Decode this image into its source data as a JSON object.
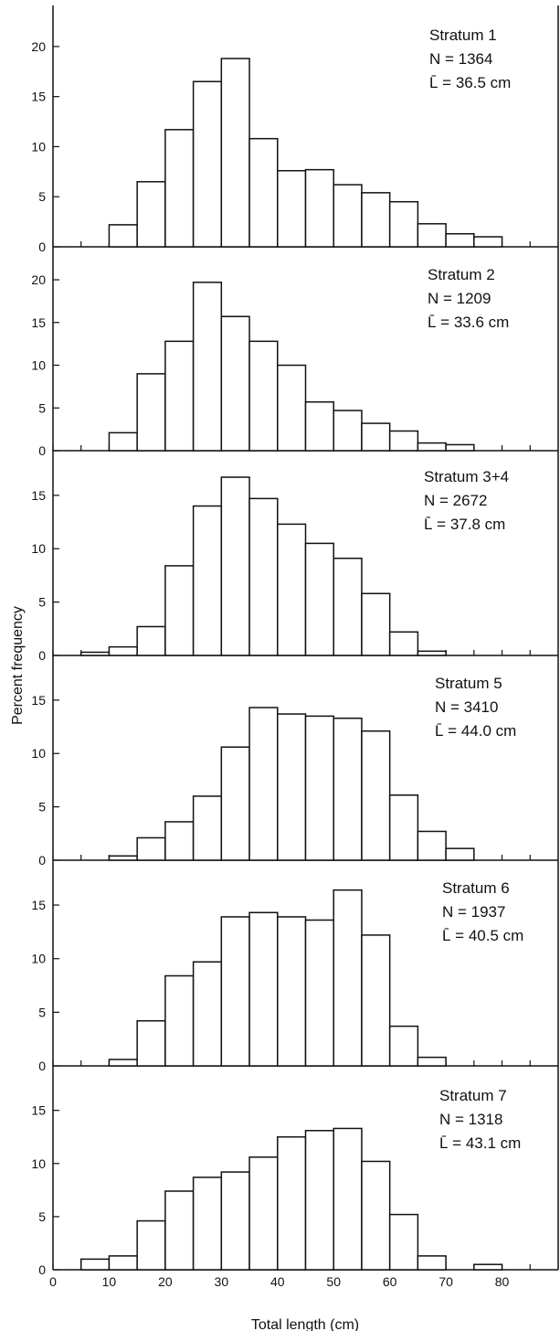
{
  "chart_data": [
    {
      "type": "bar",
      "panel": "Stratum 1",
      "info": [
        "Stratum 1",
        "N = 1364",
        "L̄ = 36.5 cm"
      ],
      "bin_edges": [
        10,
        15,
        20,
        25,
        30,
        35,
        40,
        45,
        50,
        55,
        60,
        65,
        70,
        75,
        80
      ],
      "values": [
        2.2,
        6.5,
        11.7,
        16.5,
        18.8,
        10.8,
        7.6,
        7.7,
        6.2,
        5.4,
        4.5,
        2.3,
        1.3,
        1.0
      ],
      "yticks": [
        0,
        5,
        10,
        15,
        20
      ],
      "ylim": [
        0,
        23
      ]
    },
    {
      "type": "bar",
      "panel": "Stratum 2",
      "info": [
        "Stratum 2",
        "N = 1209",
        "L̄ = 33.6 cm"
      ],
      "bin_edges": [
        10,
        15,
        20,
        25,
        30,
        35,
        40,
        45,
        50,
        55,
        60,
        65,
        70,
        75
      ],
      "values": [
        2.1,
        9.0,
        12.8,
        19.7,
        15.7,
        12.8,
        10.0,
        5.7,
        4.7,
        3.2,
        2.3,
        0.9,
        0.7
      ],
      "yticks": [
        0,
        5,
        10,
        15,
        20
      ],
      "ylim": [
        0,
        23
      ]
    },
    {
      "type": "bar",
      "panel": "Stratum 3+4",
      "info": [
        "Stratum 3+4",
        "N = 2672",
        "L̄ = 37.8 cm"
      ],
      "bin_edges": [
        5,
        10,
        15,
        20,
        25,
        30,
        35,
        40,
        45,
        50,
        55,
        60,
        65,
        70
      ],
      "values": [
        0.3,
        0.8,
        2.7,
        8.4,
        14.0,
        16.7,
        14.7,
        12.3,
        10.5,
        9.1,
        5.8,
        2.2,
        0.4
      ],
      "yticks": [
        0,
        5,
        10,
        15
      ],
      "ylim": [
        0,
        18.5
      ]
    },
    {
      "type": "bar",
      "panel": "Stratum 5",
      "info": [
        "Stratum 5",
        "N = 3410",
        "L̄ = 44.0 cm"
      ],
      "bin_edges": [
        10,
        15,
        20,
        25,
        30,
        35,
        40,
        45,
        50,
        55,
        60,
        65,
        70,
        75
      ],
      "values": [
        0.4,
        2.1,
        3.6,
        6.0,
        10.6,
        14.3,
        13.7,
        13.5,
        13.3,
        12.1,
        6.1,
        2.7,
        1.1
      ],
      "yticks": [
        0,
        5,
        10,
        15
      ],
      "ylim": [
        0,
        18.5
      ]
    },
    {
      "type": "bar",
      "panel": "Stratum 6",
      "info": [
        "Stratum 6",
        "N = 1937",
        "L̄ = 40.5 cm"
      ],
      "bin_edges": [
        10,
        15,
        20,
        25,
        30,
        35,
        40,
        45,
        50,
        55,
        60,
        65,
        70
      ],
      "values": [
        0.6,
        4.2,
        8.4,
        9.7,
        13.9,
        14.3,
        13.9,
        13.6,
        16.4,
        12.2,
        3.7,
        0.8
      ],
      "yticks": [
        0,
        5,
        10,
        15
      ],
      "ylim": [
        0,
        18.5
      ]
    },
    {
      "type": "bar",
      "panel": "Stratum 7",
      "info": [
        "Stratum 7",
        "N = 1318",
        "L̄ = 43.1 cm"
      ],
      "bin_edges": [
        5,
        10,
        15,
        20,
        25,
        30,
        35,
        40,
        45,
        50,
        55,
        60,
        65,
        70,
        75,
        80
      ],
      "values": [
        1.0,
        1.3,
        4.6,
        7.4,
        8.7,
        9.2,
        10.6,
        12.5,
        13.1,
        13.3,
        10.2,
        5.2,
        1.3,
        0,
        0.5
      ],
      "yticks": [
        0,
        5,
        10,
        15
      ],
      "ylim": [
        0,
        18.5
      ]
    }
  ],
  "axes": {
    "xlabel": "Total length (cm)",
    "ylabel": "Percent frequency",
    "xlim": [
      0,
      90
    ],
    "xtick_labels": [
      "0",
      "10",
      "20",
      "30",
      "40",
      "50",
      "60",
      "70",
      "80"
    ],
    "xtick_values": [
      0,
      10,
      20,
      30,
      40,
      50,
      60,
      70,
      80
    ],
    "minor_tick_step": 5
  }
}
